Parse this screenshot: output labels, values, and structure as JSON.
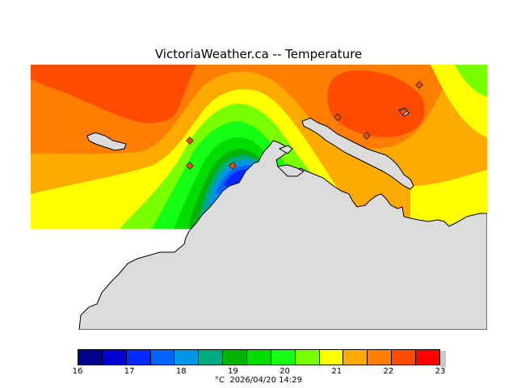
{
  "title": "VictoriaWeather.ca  --  Temperature",
  "legend": {
    "ticks": [
      "16",
      "17",
      "18",
      "19",
      "20",
      "21",
      "22",
      "23"
    ],
    "colors": [
      "#00008c",
      "#0000d2",
      "#0028ff",
      "#0064ff",
      "#0096e6",
      "#00aa80",
      "#00b400",
      "#00dc00",
      "#14ff14",
      "#78ff00",
      "#ffff00",
      "#ffaa00",
      "#ff7d00",
      "#ff4b00",
      "#ff0000"
    ],
    "unit": "°C",
    "timestamp": "2026/04/20 14:29"
  },
  "map": {
    "land_color": "#dcdcdc",
    "stations": 7
  }
}
